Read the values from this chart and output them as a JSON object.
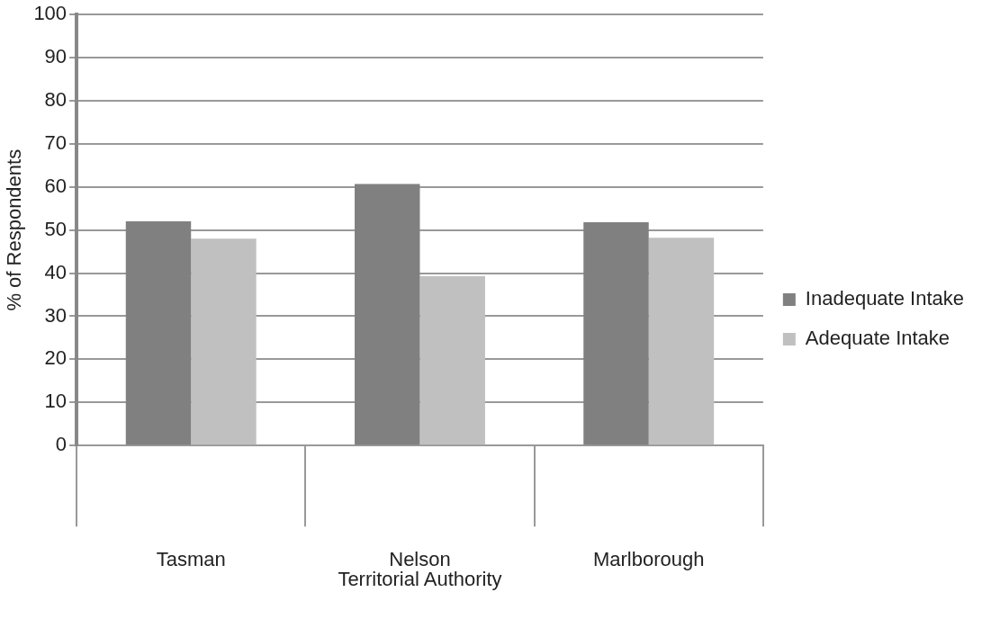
{
  "chart_data": {
    "type": "bar",
    "xlabel": "Territorial Authority",
    "ylabel": "% of Respondents",
    "categories": [
      "Tasman",
      "Nelson",
      "Marlborough"
    ],
    "series": [
      {
        "name": "Inadequate Intake",
        "color": "#808080",
        "values": [
          52,
          60.7,
          51.8
        ]
      },
      {
        "name": "Adequate Intake",
        "color": "#c0c0c0",
        "values": [
          48,
          39.3,
          48.2
        ]
      }
    ],
    "ylim": [
      0,
      100
    ],
    "yticks": [
      0,
      10,
      20,
      30,
      40,
      50,
      60,
      70,
      80,
      90,
      100
    ],
    "grid": "y",
    "legend": "right"
  }
}
